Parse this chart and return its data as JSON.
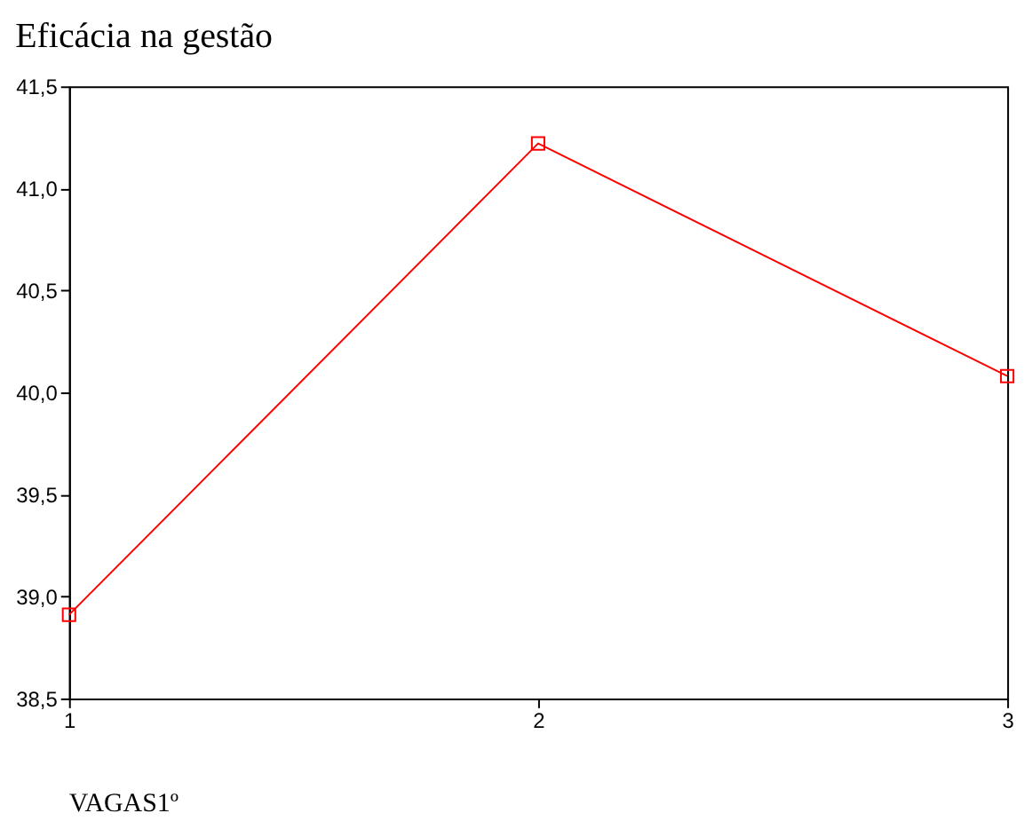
{
  "chart_data": {
    "type": "line",
    "title": "Eficácia na gestão",
    "xlabel": "VAGAS1º",
    "x": [
      1,
      2,
      3
    ],
    "series": [
      {
        "color": "#ff0000",
        "values": [
          38.91,
          41.22,
          40.08
        ]
      }
    ],
    "xlim": [
      1,
      3
    ],
    "xticks": [
      1,
      2,
      3
    ],
    "ylim": [
      38.5,
      41.5
    ],
    "yticks": [
      {
        "value": 38.5,
        "label": "38,5"
      },
      {
        "value": 39.0,
        "label": "39,0"
      },
      {
        "value": 39.5,
        "label": "39,5"
      },
      {
        "value": 40.0,
        "label": "40,0"
      },
      {
        "value": 40.5,
        "label": "40,5"
      },
      {
        "value": 41.0,
        "label": "41,0"
      },
      {
        "value": 41.5,
        "label": "41,5"
      }
    ],
    "grid": false,
    "marker": "square",
    "line_style": "solid"
  }
}
